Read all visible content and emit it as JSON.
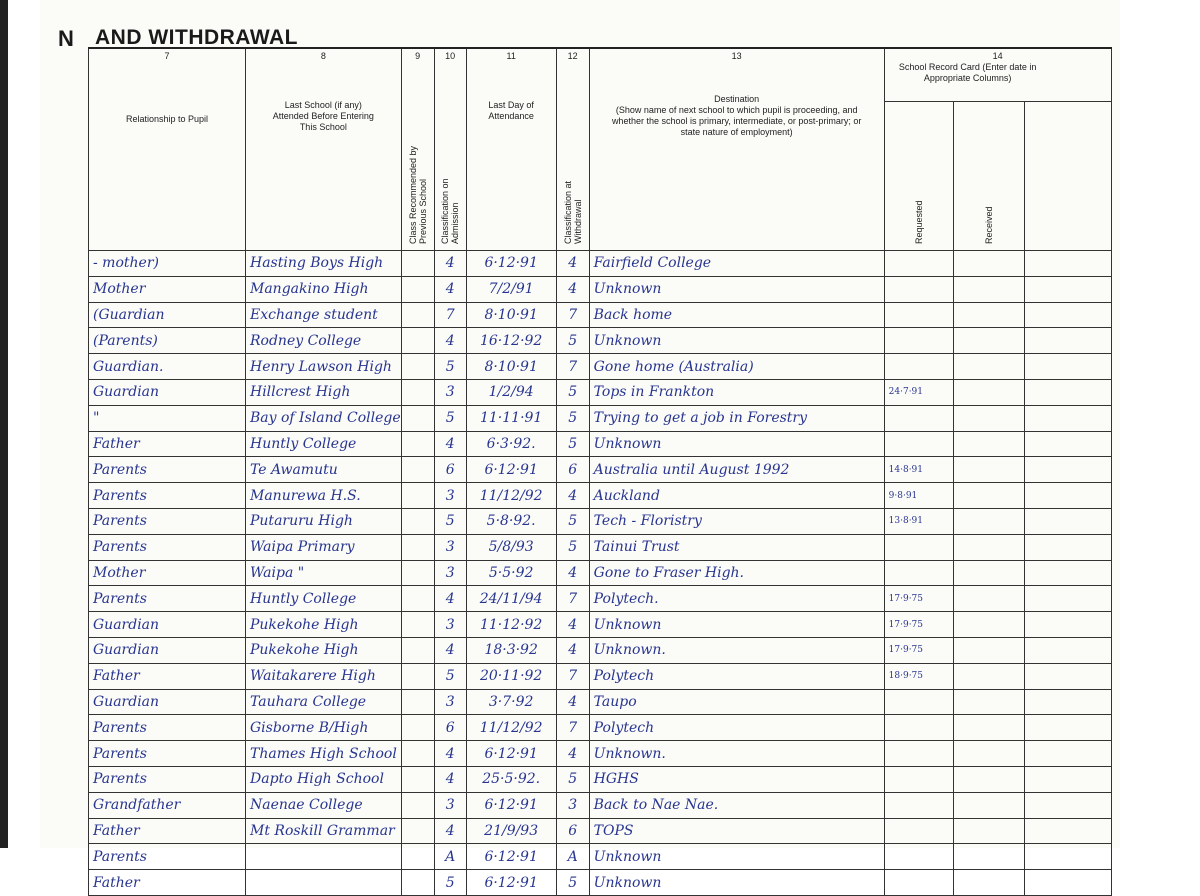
{
  "header": {
    "title_cut": "N",
    "title": "AND WITHDRAWAL",
    "columns": {
      "c7": {
        "num": "7",
        "label": "Relationship to Pupil"
      },
      "c8": {
        "num": "8",
        "label": "Last School (if any) Attended Before Entering This School"
      },
      "c9": {
        "num": "9",
        "label": "Class Recommended by Previous School"
      },
      "c10": {
        "num": "10",
        "label": "Classification on Admission"
      },
      "c11": {
        "num": "11",
        "label": "Last Day of Attendance"
      },
      "c12": {
        "num": "12",
        "label": "Classification at Withdrawal"
      },
      "c13": {
        "num": "13",
        "label": "Destination",
        "sublabel": "(Show name of next school to which pupil is proceeding, and whether the school is primary, intermediate, or post-primary; or state nature of employment)"
      },
      "c14": {
        "num": "14",
        "label": "School Record Card (Enter date in Appropriate Columns)",
        "requested": "Requested",
        "received": "Received"
      }
    }
  },
  "rows": [
    {
      "relationship": "- mother)",
      "last_school": "Hasting Boys High",
      "recommended": "",
      "admission": "4",
      "last_day": "6·12·91",
      "withdrawal": "4",
      "destination": "Fairfield College",
      "requested": ""
    },
    {
      "relationship": "Mother",
      "last_school": "Mangakino High",
      "recommended": "",
      "admission": "4",
      "last_day": "7/2/91",
      "withdrawal": "4",
      "destination": "Unknown",
      "requested": ""
    },
    {
      "relationship": "(Guardian",
      "last_school": "Exchange student",
      "recommended": "",
      "admission": "7",
      "last_day": "8·10·91",
      "withdrawal": "7",
      "destination": "Back home",
      "requested": ""
    },
    {
      "relationship": "(Parents)",
      "last_school": "Rodney College",
      "recommended": "",
      "admission": "4",
      "last_day": "16·12·92",
      "withdrawal": "5",
      "destination": "Unknown",
      "requested": ""
    },
    {
      "relationship": "Guardian.",
      "last_school": "Henry Lawson High",
      "recommended": "",
      "admission": "5",
      "last_day": "8·10·91",
      "withdrawal": "7",
      "destination": "Gone home (Australia)",
      "requested": ""
    },
    {
      "relationship": "Guardian",
      "last_school": "Hillcrest High",
      "recommended": "",
      "admission": "3",
      "last_day": "1/2/94",
      "withdrawal": "5",
      "destination": "Tops in Frankton",
      "requested": "24·7·91"
    },
    {
      "relationship": "\"",
      "last_school": "Bay of Island College",
      "recommended": "",
      "admission": "5",
      "last_day": "11·11·91",
      "withdrawal": "5",
      "destination": "Trying to get a job in Forestry",
      "requested": ""
    },
    {
      "relationship": "Father",
      "last_school": "Huntly College",
      "recommended": "",
      "admission": "4",
      "last_day": "6·3·92.",
      "withdrawal": "5",
      "destination": "Unknown",
      "requested": ""
    },
    {
      "relationship": "Parents",
      "last_school": "Te Awamutu",
      "recommended": "",
      "admission": "6",
      "last_day": "6·12·91",
      "withdrawal": "6",
      "destination": "Australia until August 1992",
      "requested": "14·8·91"
    },
    {
      "relationship": "Parents",
      "last_school": "Manurewa H.S.",
      "recommended": "",
      "admission": "3",
      "last_day": "11/12/92",
      "withdrawal": "4",
      "destination": "Auckland",
      "requested": "9·8·91"
    },
    {
      "relationship": "Parents",
      "last_school": "Putaruru High",
      "recommended": "",
      "admission": "5",
      "last_day": "5·8·92.",
      "withdrawal": "5",
      "destination": "Tech - Floristry",
      "requested": "13·8·91"
    },
    {
      "relationship": "Parents",
      "last_school": "Waipa Primary",
      "recommended": "",
      "admission": "3",
      "last_day": "5/8/93",
      "withdrawal": "5",
      "destination": "Tainui Trust",
      "requested": ""
    },
    {
      "relationship": "Mother",
      "last_school": "Waipa \"",
      "recommended": "",
      "admission": "3",
      "last_day": "5·5·92",
      "withdrawal": "4",
      "destination": "Gone to Fraser High.",
      "requested": ""
    },
    {
      "relationship": "Parents",
      "last_school": "Huntly College",
      "recommended": "",
      "admission": "4",
      "last_day": "24/11/94",
      "withdrawal": "7",
      "destination": "Polytech.",
      "requested": "17·9·75"
    },
    {
      "relationship": "Guardian",
      "last_school": "Pukekohe High",
      "recommended": "",
      "admission": "3",
      "last_day": "11·12·92",
      "withdrawal": "4",
      "destination": "Unknown",
      "requested": "17·9·75"
    },
    {
      "relationship": "Guardian",
      "last_school": "Pukekohe High",
      "recommended": "",
      "admission": "4",
      "last_day": "18·3·92",
      "withdrawal": "4",
      "destination": "Unknown.",
      "requested": "17·9·75"
    },
    {
      "relationship": "Father",
      "last_school": "Waitakarere High",
      "recommended": "",
      "admission": "5",
      "last_day": "20·11·92",
      "withdrawal": "7",
      "destination": "Polytech",
      "requested": "18·9·75"
    },
    {
      "relationship": "Guardian",
      "last_school": "Tauhara College",
      "recommended": "",
      "admission": "3",
      "last_day": "3·7·92",
      "withdrawal": "4",
      "destination": "Taupo",
      "requested": ""
    },
    {
      "relationship": "Parents",
      "last_school": "Gisborne B/High",
      "recommended": "",
      "admission": "6",
      "last_day": "11/12/92",
      "withdrawal": "7",
      "destination": "Polytech",
      "requested": ""
    },
    {
      "relationship": "Parents",
      "last_school": "Thames High School",
      "recommended": "",
      "admission": "4",
      "last_day": "6·12·91",
      "withdrawal": "4",
      "destination": "Unknown.",
      "requested": ""
    },
    {
      "relationship": "Parents",
      "last_school": "Dapto High School",
      "recommended": "",
      "admission": "4",
      "last_day": "25·5·92.",
      "withdrawal": "5",
      "destination": "HGHS",
      "requested": ""
    },
    {
      "relationship": "Grandfather",
      "last_school": "Naenae College",
      "recommended": "",
      "admission": "3",
      "last_day": "6·12·91",
      "withdrawal": "3",
      "destination": "Back to Nae Nae.",
      "requested": ""
    },
    {
      "relationship": "Father",
      "last_school": "Mt Roskill Grammar",
      "recommended": "",
      "admission": "4",
      "last_day": "21/9/93",
      "withdrawal": "6",
      "destination": "TOPS",
      "requested": ""
    },
    {
      "relationship": "Parents",
      "last_school": "",
      "recommended": "",
      "admission": "A",
      "last_day": "6·12·91",
      "withdrawal": "A",
      "destination": "Unknown",
      "requested": ""
    },
    {
      "relationship": "Father",
      "last_school": "",
      "recommended": "",
      "admission": "5",
      "last_day": "6·12·91",
      "withdrawal": "5",
      "destination": "Unknown",
      "requested": ""
    }
  ],
  "colors": {
    "ink": "#28358f",
    "print": "#222222"
  }
}
